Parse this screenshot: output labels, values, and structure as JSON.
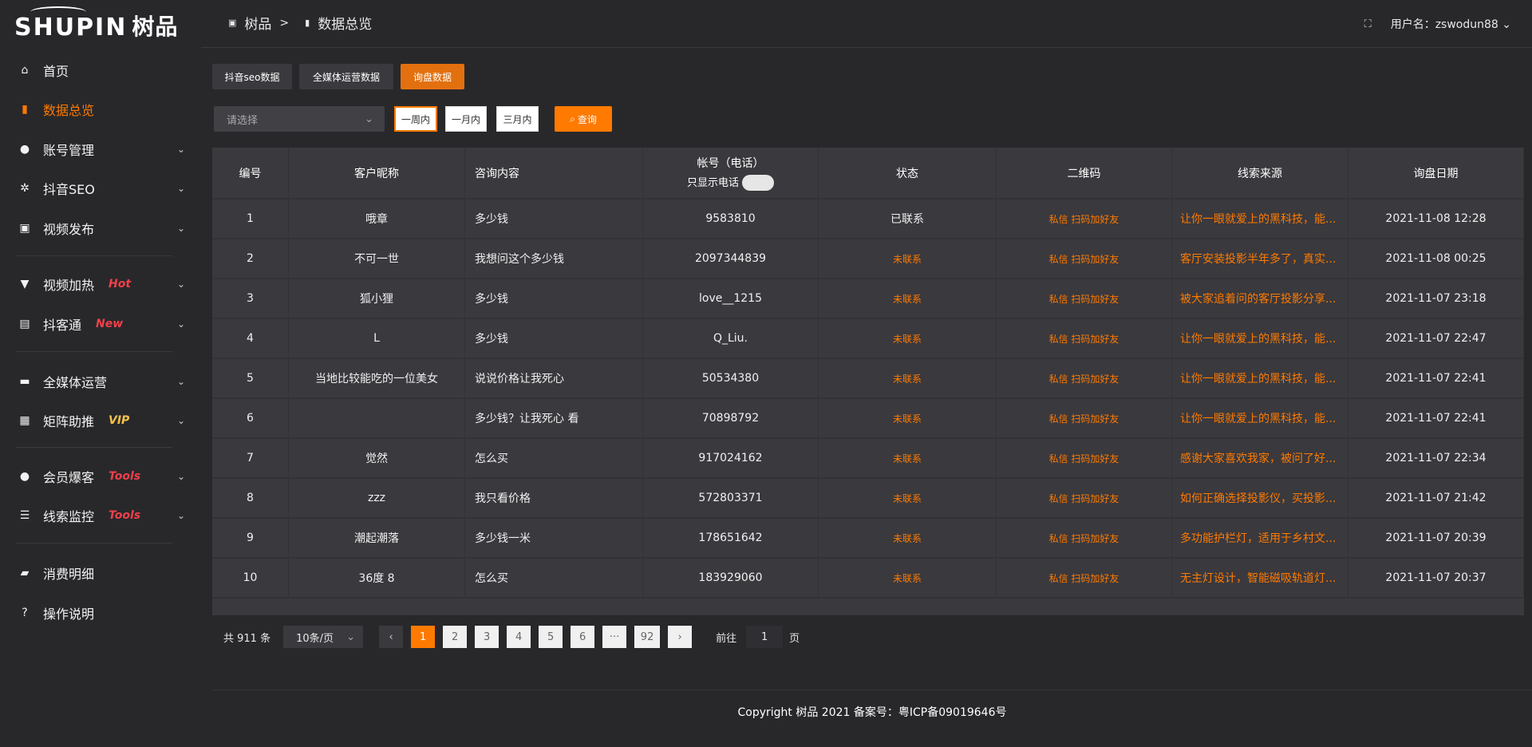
{
  "logo": {
    "text": "SHUPIN",
    "cn": "树品"
  },
  "header": {
    "breadcrumb": [
      "树品",
      ">",
      "数据总览"
    ],
    "user_label": "用户名：zswodun88"
  },
  "sidebar": {
    "items": [
      {
        "label": "首页",
        "icon": "home-icon",
        "glyph": "⌂"
      },
      {
        "label": "数据总览",
        "icon": "bar-chart-icon",
        "glyph": "▮",
        "active": true
      },
      {
        "label": "账号管理",
        "icon": "user-icon",
        "glyph": "●",
        "chev": true
      },
      {
        "label": "抖音SEO",
        "icon": "gear-icon",
        "glyph": "✲",
        "chev": true
      },
      {
        "label": "视频发布",
        "icon": "video-icon",
        "glyph": "▣",
        "chev": true
      },
      {
        "label": "视频加热",
        "icon": "hot-icon",
        "glyph": "▼",
        "chev": true,
        "badge": "Hot",
        "badge_color": "#f0404a"
      },
      {
        "label": "抖客通",
        "icon": "chat-icon",
        "glyph": "▤",
        "chev": true,
        "badge": "New",
        "badge_color": "#f0404a"
      },
      {
        "label": "全媒体运营",
        "icon": "monitor-icon",
        "glyph": "▬",
        "chev": true
      },
      {
        "label": "矩阵助推",
        "icon": "grid-icon",
        "glyph": "▦",
        "chev": true,
        "badge": "VIP",
        "badge_color": "#f5c14a"
      },
      {
        "label": "会员爆客",
        "icon": "member-icon",
        "glyph": "●",
        "chev": true,
        "badge": "Tools",
        "badge_color": "#f0404a"
      },
      {
        "label": "线索监控",
        "icon": "sliders-icon",
        "glyph": "☰",
        "chev": true,
        "badge": "Tools",
        "badge_color": "#f0404a"
      },
      {
        "label": "消费明细",
        "icon": "wallet-icon",
        "glyph": "▰"
      },
      {
        "label": "操作说明",
        "icon": "help-icon",
        "glyph": "?"
      }
    ]
  },
  "tabs": [
    {
      "label": "抖音seo数据"
    },
    {
      "label": "全媒体运营数据"
    },
    {
      "label": "询盘数据",
      "active": true
    }
  ],
  "filter": {
    "placeholder": "请选择",
    "ranges": [
      "一周内",
      "一月内",
      "三月内"
    ],
    "query": "查询"
  },
  "table": {
    "columns": [
      "编号",
      "客户昵称",
      "咨询内容",
      "帐号（电话）",
      "状态",
      "二维码",
      "线索来源",
      "询盘日期"
    ],
    "phone_toggle_label": "只显示电话",
    "rows": [
      [
        "1",
        "哦章",
        "多少钱",
        "9583810",
        "已联系",
        "私信 扫码加好友",
        "让你一眼就爱上的黑科技，能...",
        "2021-11-08 12:28"
      ],
      [
        "2",
        "不可一世",
        "我想问这个多少钱",
        "2097344839",
        "未联系",
        "私信 扫码加好友",
        "客厅安装投影半年多了，真实...",
        "2021-11-08 00:25"
      ],
      [
        "3",
        "狐小狸",
        "多少钱",
        "love__1215",
        "未联系",
        "私信 扫码加好友",
        "被大家追着问的客厅投影分享...",
        "2021-11-07 23:18"
      ],
      [
        "4",
        "L",
        "多少钱",
        "Q_Liu.",
        "未联系",
        "私信 扫码加好友",
        "让你一眼就爱上的黑科技，能...",
        "2021-11-07 22:47"
      ],
      [
        "5",
        "当地比较能吃的一位美女",
        "说说价格让我死心",
        "50534380",
        "未联系",
        "私信 扫码加好友",
        "让你一眼就爱上的黑科技，能...",
        "2021-11-07 22:41"
      ],
      [
        "6",
        "",
        "多少钱？让我死心 看",
        "70898792",
        "未联系",
        "私信 扫码加好友",
        "让你一眼就爱上的黑科技，能...",
        "2021-11-07 22:41"
      ],
      [
        "7",
        "觉然",
        "怎么买",
        "917024162",
        "未联系",
        "私信 扫码加好友",
        "感谢大家喜欢我家，被问了好...",
        "2021-11-07 22:34"
      ],
      [
        "8",
        "zzz",
        "我只看价格",
        "572803371",
        "未联系",
        "私信 扫码加好友",
        "如何正确选择投影仪，买投影...",
        "2021-11-07 21:42"
      ],
      [
        "9",
        "潮起潮落",
        "多少钱一米",
        "178651642",
        "未联系",
        "私信 扫码加好友",
        "多功能护栏灯，适用于乡村文...",
        "2021-11-07 20:39"
      ],
      [
        "10",
        "36度 8",
        "怎么买",
        "183929060",
        "未联系",
        "私信 扫码加好友",
        "无主灯设计，智能磁吸轨道灯...",
        "2021-11-07 20:37"
      ]
    ]
  },
  "pagination": {
    "total": "共 911 条",
    "page_size": "10条/页",
    "pages": [
      "1",
      "2",
      "3",
      "4",
      "5",
      "6",
      "···",
      "92"
    ],
    "current": "1",
    "goto_label": "前往",
    "goto_value": "1",
    "page_suffix": "页"
  },
  "footer": {
    "text": "Copyright 树品 2021 备案号：粤ICP备09019646号"
  },
  "colors": {
    "accent": "#ff7a00",
    "bg": "#28282b",
    "table": "#3a393e"
  }
}
